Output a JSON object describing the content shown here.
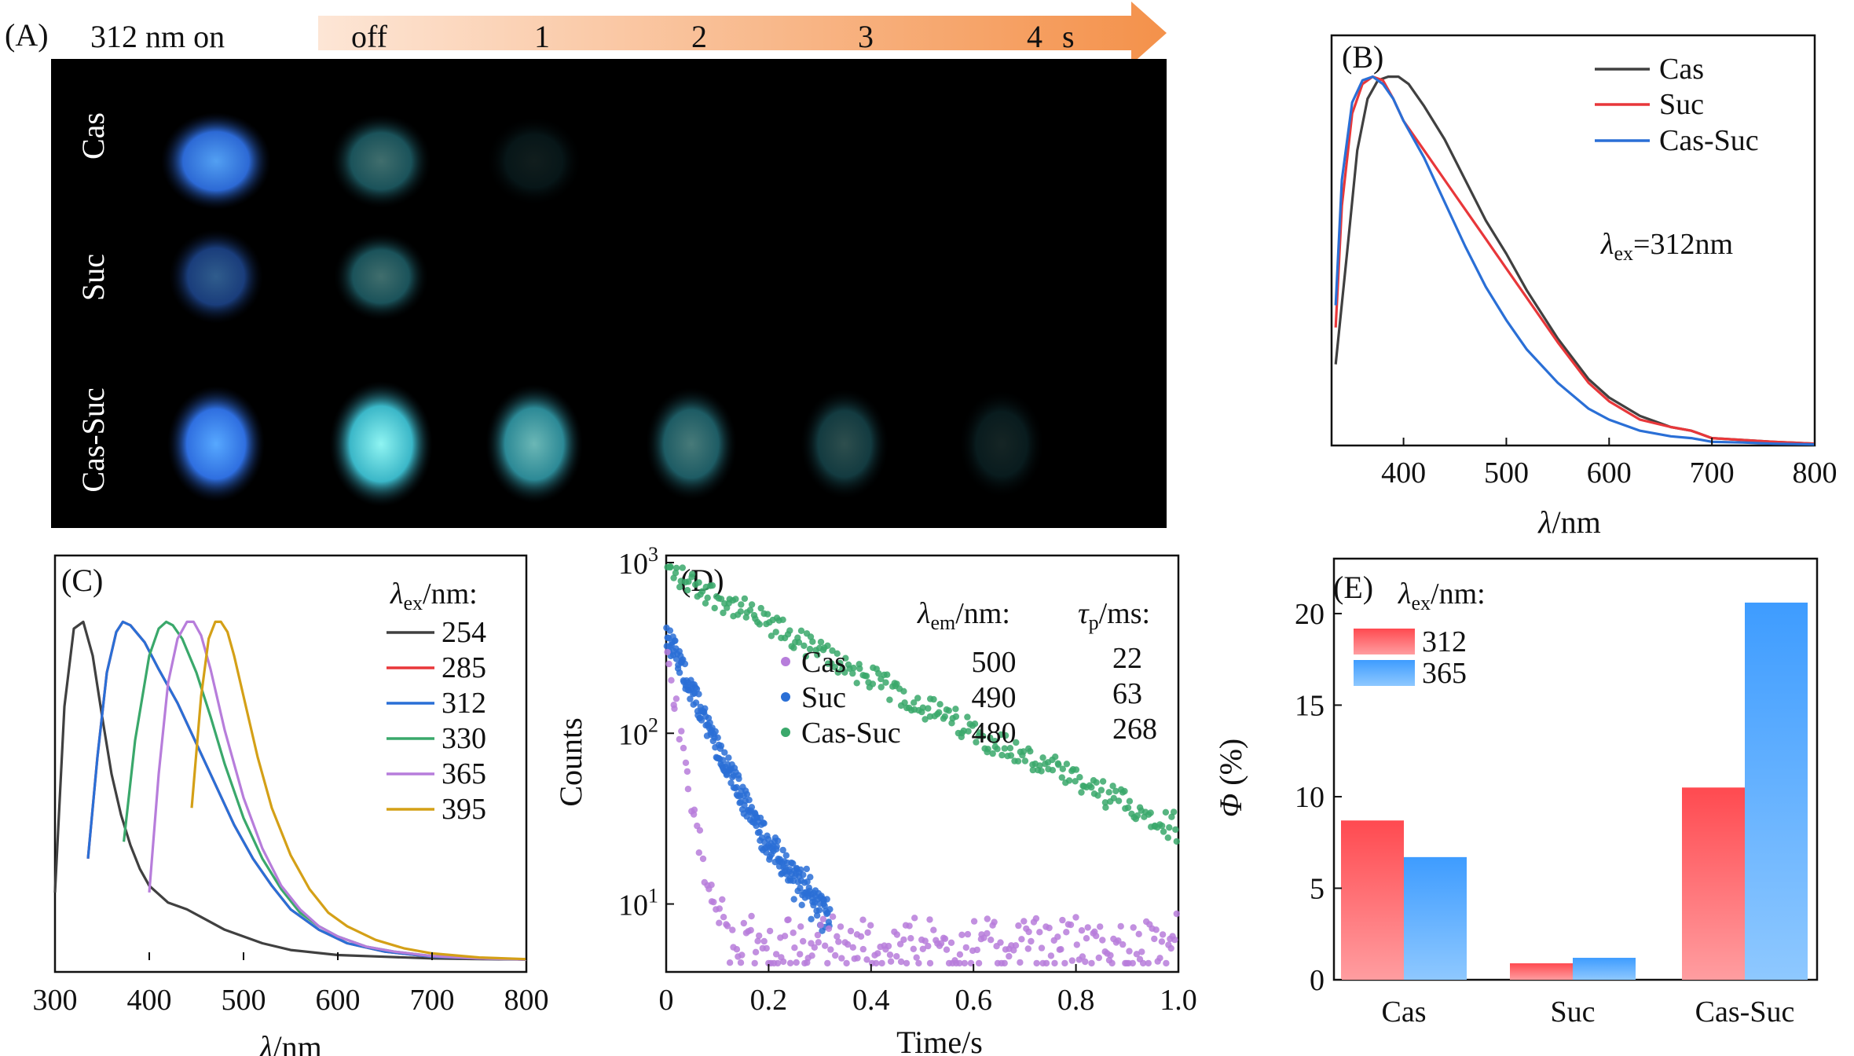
{
  "panel_a": {
    "label": "(A)",
    "header_on": "312 nm on",
    "timeline": [
      "off",
      "1",
      "2",
      "3",
      "4"
    ],
    "timeline_unit": "s",
    "rows": [
      "Cas",
      "Suc",
      "Cas-Suc"
    ],
    "glow": {
      "Cas": [
        0.95,
        0.45,
        0.12,
        0,
        0,
        0
      ],
      "Suc": [
        0.55,
        0.45,
        0,
        0,
        0,
        0
      ],
      "Cas-Suc": [
        1.0,
        1.0,
        0.75,
        0.5,
        0.32,
        0.15
      ]
    },
    "colors": {
      "on": "#3a8cff",
      "afterglow": "#5fe0e6",
      "arrow_start": "#fde6d6",
      "arrow_end": "#f4914a"
    }
  },
  "chart_data": [
    {
      "panel": "B",
      "label": "(B)",
      "type": "line",
      "xlabel_var": "λ",
      "xlabel_unit": "/nm",
      "xlim": [
        330,
        800
      ],
      "ylim": [
        0,
        1.08
      ],
      "xticks": [
        400,
        500,
        600,
        700,
        800
      ],
      "annotation": {
        "var": "λ",
        "sub": "ex",
        "text": "=312nm"
      },
      "series": [
        {
          "name": "Cas",
          "color": "#404040",
          "x": [
            334,
            345,
            355,
            365,
            375,
            385,
            395,
            405,
            420,
            440,
            460,
            480,
            500,
            520,
            550,
            580,
            600,
            630,
            660,
            680,
            700,
            730,
            760,
            800
          ],
          "y": [
            0.22,
            0.52,
            0.8,
            0.94,
            0.99,
            1.0,
            1.0,
            0.98,
            0.92,
            0.83,
            0.72,
            0.61,
            0.52,
            0.42,
            0.29,
            0.18,
            0.13,
            0.08,
            0.05,
            0.04,
            0.02,
            0.015,
            0.01,
            0.005
          ]
        },
        {
          "name": "Suc",
          "color": "#e8373a",
          "x": [
            334,
            340,
            350,
            360,
            370,
            380,
            390,
            400,
            420,
            440,
            460,
            480,
            500,
            520,
            550,
            580,
            600,
            630,
            660,
            680,
            700,
            730,
            760,
            800
          ],
          "y": [
            0.32,
            0.65,
            0.9,
            0.98,
            1.0,
            0.99,
            0.94,
            0.88,
            0.8,
            0.72,
            0.64,
            0.56,
            0.48,
            0.4,
            0.28,
            0.17,
            0.12,
            0.07,
            0.05,
            0.04,
            0.02,
            0.015,
            0.01,
            0.005
          ]
        },
        {
          "name": "Cas-Suc",
          "color": "#2a6fd6",
          "x": [
            334,
            340,
            350,
            360,
            370,
            380,
            390,
            400,
            420,
            440,
            460,
            480,
            500,
            520,
            550,
            580,
            600,
            630,
            660,
            680,
            700,
            730,
            760,
            800
          ],
          "y": [
            0.38,
            0.72,
            0.93,
            0.99,
            1.0,
            0.98,
            0.94,
            0.88,
            0.78,
            0.66,
            0.54,
            0.43,
            0.34,
            0.26,
            0.17,
            0.1,
            0.07,
            0.04,
            0.025,
            0.02,
            0.01,
            0.008,
            0.005,
            0.003
          ]
        }
      ]
    },
    {
      "panel": "C",
      "label": "(C)",
      "type": "line",
      "xlabel_var": "λ",
      "xlabel_unit": "/nm",
      "xlim": [
        300,
        800
      ],
      "ylim": [
        0,
        1.08
      ],
      "xticks": [
        300,
        400,
        500,
        600,
        700,
        800
      ],
      "legend_title": {
        "var": "λ",
        "sub": "ex",
        "text": "/nm:"
      },
      "series": [
        {
          "name": "254",
          "color": "#404040",
          "x": [
            300,
            310,
            320,
            330,
            340,
            350,
            360,
            370,
            380,
            390,
            400,
            420,
            440,
            460,
            480,
            500,
            520,
            550,
            600,
            650,
            700,
            750,
            800
          ],
          "y": [
            0.2,
            0.75,
            0.98,
            1.0,
            0.9,
            0.72,
            0.55,
            0.43,
            0.34,
            0.27,
            0.22,
            0.17,
            0.15,
            0.12,
            0.09,
            0.07,
            0.05,
            0.03,
            0.015,
            0.01,
            0.005,
            0.003,
            0.002
          ]
        },
        {
          "name": "285",
          "color": "#e8373a",
          "x": [
            335,
            345,
            355,
            365,
            372,
            380,
            395,
            410,
            430,
            450,
            470,
            490,
            510,
            530,
            550,
            580,
            610,
            650,
            700,
            750,
            800
          ],
          "y": [
            0.3,
            0.6,
            0.85,
            0.97,
            1.0,
            0.99,
            0.94,
            0.86,
            0.76,
            0.64,
            0.52,
            0.4,
            0.3,
            0.22,
            0.15,
            0.09,
            0.05,
            0.025,
            0.01,
            0.005,
            0.002
          ]
        },
        {
          "name": "312",
          "color": "#2a6fd6",
          "x": [
            335,
            345,
            355,
            365,
            372,
            380,
            395,
            410,
            430,
            450,
            470,
            490,
            510,
            530,
            550,
            580,
            610,
            650,
            700,
            750,
            800
          ],
          "y": [
            0.3,
            0.6,
            0.85,
            0.97,
            1.0,
            0.99,
            0.94,
            0.86,
            0.76,
            0.64,
            0.52,
            0.4,
            0.3,
            0.22,
            0.15,
            0.09,
            0.05,
            0.025,
            0.01,
            0.005,
            0.002
          ]
        },
        {
          "name": "330",
          "color": "#3aa86b",
          "x": [
            373,
            385,
            400,
            410,
            418,
            425,
            435,
            450,
            465,
            480,
            500,
            520,
            540,
            560,
            580,
            600,
            630,
            660,
            700,
            750,
            800
          ],
          "y": [
            0.35,
            0.65,
            0.9,
            0.98,
            1.0,
            0.99,
            0.95,
            0.85,
            0.72,
            0.58,
            0.42,
            0.3,
            0.21,
            0.14,
            0.1,
            0.07,
            0.04,
            0.025,
            0.012,
            0.005,
            0.002
          ]
        },
        {
          "name": "365",
          "color": "#b77ddb",
          "x": [
            400,
            410,
            420,
            430,
            440,
            447,
            455,
            465,
            480,
            500,
            520,
            540,
            560,
            580,
            600,
            630,
            660,
            700,
            750,
            800
          ],
          "y": [
            0.2,
            0.55,
            0.82,
            0.95,
            1.0,
            1.0,
            0.96,
            0.86,
            0.68,
            0.48,
            0.33,
            0.22,
            0.15,
            0.1,
            0.07,
            0.04,
            0.025,
            0.012,
            0.005,
            0.002
          ]
        },
        {
          "name": "395",
          "color": "#d4a017",
          "x": [
            445,
            455,
            463,
            470,
            476,
            483,
            490,
            500,
            515,
            530,
            550,
            570,
            590,
            610,
            640,
            670,
            700,
            750,
            800
          ],
          "y": [
            0.45,
            0.78,
            0.95,
            1.0,
            1.0,
            0.97,
            0.9,
            0.78,
            0.6,
            0.45,
            0.31,
            0.21,
            0.14,
            0.1,
            0.06,
            0.035,
            0.02,
            0.008,
            0.003
          ]
        }
      ]
    },
    {
      "panel": "D",
      "label": "(D)",
      "type": "scatter",
      "xlabel": "Time/s",
      "ylabel": "Counts",
      "xlim": [
        0,
        1.0
      ],
      "ylim": [
        4,
        1100
      ],
      "log_y": true,
      "xticks": [
        0,
        0.2,
        0.4,
        0.6,
        0.8,
        1.0
      ],
      "xtick_labels": [
        "0",
        "0.2",
        "0.4",
        "0.6",
        "0.8",
        "1.0"
      ],
      "ytick_labels": [
        {
          "value": 10,
          "base": "10",
          "exp": "1"
        },
        {
          "value": 100,
          "base": "10",
          "exp": "2"
        },
        {
          "value": 1000,
          "base": "10",
          "exp": "3"
        }
      ],
      "legend_header_em": {
        "var": "λ",
        "sub": "em",
        "text": "/nm:"
      },
      "legend_header_tau": {
        "var": "τ",
        "sub": "p",
        "text": "/ms:"
      },
      "series": [
        {
          "name": "Cas",
          "color": "#b77ddb",
          "lambda_em": "500",
          "tau_ms": "22",
          "tau_s": 0.022,
          "a0": 320,
          "floor": 5,
          "t_end": 1.0
        },
        {
          "name": "Suc",
          "color": "#2a6fd6",
          "lambda_em": "490",
          "tau_ms": "63",
          "tau_s": 0.063,
          "a0": 380,
          "floor": 6,
          "t_end": 0.32
        },
        {
          "name": "Cas-Suc",
          "color": "#3aa86b",
          "lambda_em": "480",
          "tau_ms": "268",
          "tau_s": 0.268,
          "a0": 900,
          "floor": 6,
          "t_end": 1.0
        }
      ]
    },
    {
      "panel": "E",
      "label": "(E)",
      "type": "bar",
      "ylabel_var": "Φ",
      "ylabel_unit": " (%)",
      "categories": [
        "Cas",
        "Suc",
        "Cas-Suc"
      ],
      "ylim": [
        0,
        23
      ],
      "yticks": [
        0,
        5,
        10,
        15,
        20
      ],
      "legend_title": {
        "var": "λ",
        "sub": "ex",
        "text": "/nm:"
      },
      "series": [
        {
          "name": "312",
          "color": "#ff5b5f",
          "values": [
            8.7,
            0.9,
            10.5
          ]
        },
        {
          "name": "365",
          "color": "#4ba6ff",
          "values": [
            6.7,
            1.2,
            20.6
          ]
        }
      ]
    }
  ]
}
